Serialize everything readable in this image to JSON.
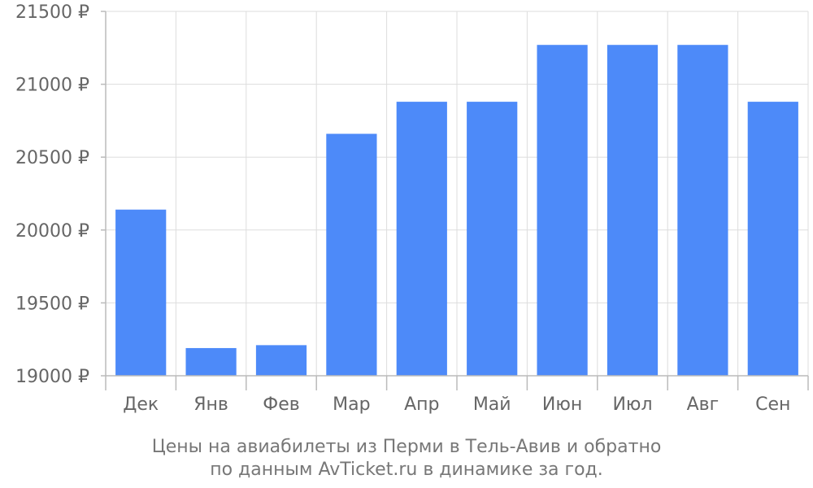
{
  "chart_data": {
    "type": "bar",
    "categories": [
      "Дек",
      "Янв",
      "Фев",
      "Мар",
      "Апр",
      "Май",
      "Июн",
      "Июл",
      "Авг",
      "Сен"
    ],
    "values": [
      20140,
      19190,
      19210,
      20660,
      20880,
      20880,
      21270,
      21270,
      21270,
      20880
    ],
    "ylim": [
      19000,
      21500
    ],
    "yticks": [
      19000,
      19500,
      20000,
      20500,
      21000,
      21500
    ],
    "ytick_labels": [
      "19000 ₽",
      "19500 ₽",
      "20000 ₽",
      "20500 ₽",
      "21000 ₽",
      "21500 ₽"
    ],
    "grid": true,
    "colors": {
      "bar": "#4d8af9"
    }
  },
  "caption": {
    "line1": "Цены на авиабилеты из Перми в Тель-Авив и обратно",
    "line2": "по данным AvTicket.ru в динамике за год."
  }
}
